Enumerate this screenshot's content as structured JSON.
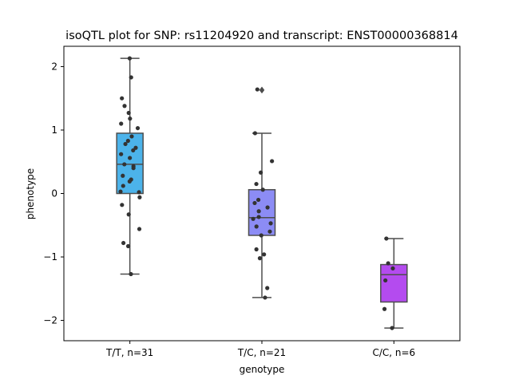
{
  "chart_data": {
    "type": "box",
    "title": "isoQTL plot for SNP: rs11204920 and transcript: ENST00000368814",
    "xlabel": "genotype",
    "ylabel": "phenotype",
    "ylim": [
      -2.32,
      2.32
    ],
    "yticks": [
      -2,
      -1,
      0,
      1,
      2
    ],
    "ytick_labels": [
      "−2",
      "−1",
      "0",
      "1",
      "2"
    ],
    "grid": false,
    "legend": "none",
    "categories": [
      "T/T, n=31",
      "T/C, n=21",
      "C/C, n=6"
    ],
    "boxes": [
      {
        "category": "T/T, n=31",
        "color": "#4cb3ea",
        "whisker_low": -1.27,
        "q1": 0.0,
        "median": 0.46,
        "q3": 0.95,
        "whisker_high": 2.13,
        "outliers": []
      },
      {
        "category": "T/C, n=21",
        "color": "#8c8cf5",
        "whisker_low": -1.64,
        "q1": -0.66,
        "median": -0.38,
        "q3": 0.06,
        "whisker_high": 0.95,
        "outliers": [
          1.63
        ]
      },
      {
        "category": "C/C, n=6",
        "color": "#b44bef",
        "whisker_low": -2.12,
        "q1": -1.71,
        "median": -1.28,
        "q3": -1.12,
        "whisker_high": -0.71,
        "outliers": []
      }
    ],
    "points": [
      [
        2.13,
        1.83,
        1.5,
        1.38,
        1.27,
        1.18,
        1.1,
        1.03,
        0.9,
        0.83,
        0.78,
        0.72,
        0.68,
        0.62,
        0.56,
        0.46,
        0.43,
        0.28,
        0.22,
        0.19,
        0.12,
        0.03,
        0.02,
        -0.06,
        -0.18,
        -0.33,
        -0.56,
        -0.78,
        -0.83,
        -1.27,
        0.4
      ],
      [
        1.64,
        0.95,
        0.51,
        0.33,
        0.15,
        0.06,
        -0.1,
        -0.15,
        -0.22,
        -0.28,
        -0.37,
        -0.4,
        -0.47,
        -0.52,
        -0.6,
        -0.66,
        -0.88,
        -0.96,
        -1.02,
        -1.49,
        -1.64
      ],
      [
        -0.71,
        -1.1,
        -1.18,
        -1.37,
        -1.82,
        -2.12
      ]
    ],
    "point_color": "#333333"
  }
}
